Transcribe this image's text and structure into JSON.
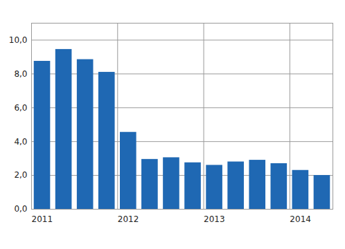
{
  "chart_data": {
    "type": "bar",
    "categories": [
      "2011",
      null,
      null,
      null,
      "2012",
      null,
      null,
      null,
      "2013",
      null,
      null,
      null,
      "2014",
      null
    ],
    "values": [
      8.75,
      9.45,
      8.85,
      8.1,
      4.55,
      2.95,
      3.05,
      2.75,
      2.6,
      2.8,
      2.9,
      2.7,
      2.3,
      2.0
    ],
    "color": "#1f68b3",
    "ylim": [
      0,
      11
    ],
    "yticks": [
      {
        "value": 0,
        "label": "0,0"
      },
      {
        "value": 2,
        "label": "2,0"
      },
      {
        "value": 4,
        "label": "4,0"
      },
      {
        "value": 6,
        "label": "6,0"
      },
      {
        "value": 8,
        "label": "8,0"
      },
      {
        "value": 10,
        "label": "10,0"
      }
    ],
    "grid": true
  }
}
